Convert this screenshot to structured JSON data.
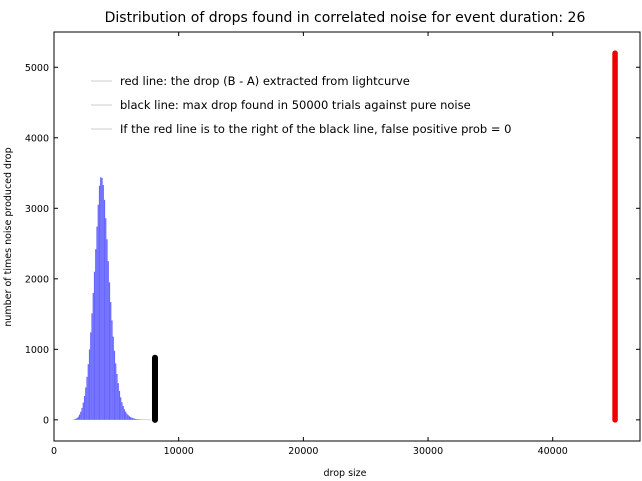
{
  "chart_data": {
    "type": "bar",
    "title": "Distribution of drops found in correlated noise for event duration: 26",
    "xlabel": "drop size",
    "ylabel": "number of times noise produced drop",
    "xlim": [
      0,
      47000
    ],
    "ylim": [
      -300,
      5500
    ],
    "xticks": [
      0,
      10000,
      20000,
      30000,
      40000
    ],
    "xtick_labels": [
      "0",
      "10000",
      "20000",
      "30000",
      "40000"
    ],
    "yticks": [
      0,
      1000,
      2000,
      3000,
      4000,
      5000
    ],
    "ytick_labels": [
      "0",
      "1000",
      "2000",
      "3000",
      "4000",
      "5000"
    ],
    "grid": false,
    "legend_position": "top-left",
    "legend": [
      "red line: the drop (B - A) extracted from lightcurve",
      "black line: max drop found in 50000 trials against pure noise",
      "If the red line is to the right of the black line, false positive prob = 0"
    ],
    "histogram": {
      "color": "#6666ff",
      "bin_width": 100,
      "x": [
        1500,
        1600,
        1700,
        1800,
        1900,
        2000,
        2100,
        2200,
        2300,
        2400,
        2500,
        2600,
        2700,
        2800,
        2900,
        3000,
        3100,
        3200,
        3300,
        3400,
        3500,
        3600,
        3700,
        3800,
        3900,
        4000,
        4100,
        4200,
        4300,
        4400,
        4500,
        4600,
        4700,
        4800,
        4900,
        5000,
        5100,
        5200,
        5300,
        5400,
        5500,
        5600,
        5700,
        5800,
        5900,
        6000,
        6100,
        6200,
        6300,
        6400,
        6500,
        6600,
        6700,
        6800,
        6900,
        7000,
        7100,
        7200,
        7300,
        7400,
        7500,
        7600,
        7700,
        7800,
        7900,
        8000
      ],
      "values": [
        4,
        8,
        15,
        27,
        45,
        75,
        115,
        170,
        245,
        340,
        460,
        610,
        790,
        1000,
        1240,
        1510,
        1800,
        2100,
        2420,
        2740,
        3050,
        3320,
        3440,
        3430,
        3330,
        3120,
        2860,
        2560,
        2250,
        1950,
        1670,
        1410,
        1180,
        980,
        800,
        650,
        520,
        410,
        320,
        250,
        195,
        150,
        115,
        88,
        67,
        51,
        39,
        30,
        23,
        17,
        13,
        10,
        8,
        6,
        5,
        4,
        3,
        2,
        2,
        1,
        1,
        1,
        1,
        0,
        0,
        0
      ]
    },
    "lines": [
      {
        "color": "#000000",
        "x": 8100,
        "y_range": [
          0,
          880
        ]
      },
      {
        "color": "#ee0000",
        "x": 45000,
        "y_range": [
          0,
          5200
        ]
      }
    ]
  }
}
